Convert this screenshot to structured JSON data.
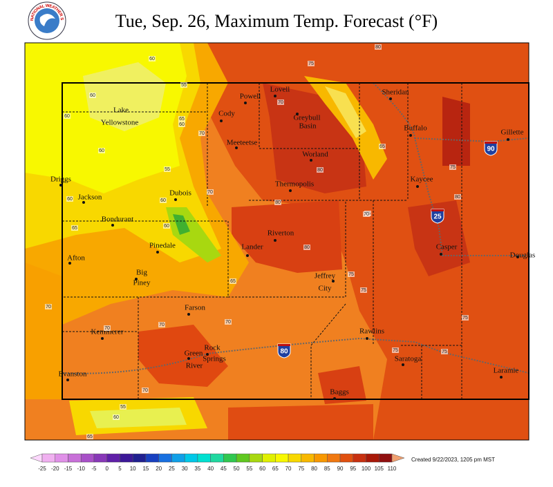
{
  "header": {
    "title": "Tue, Sep. 26, Maximum Temp. Forecast (°F)",
    "logo_text": "NATIONAL WEATHER SERVICE"
  },
  "cities": [
    "Lake",
    "Yellowstone",
    "Cody",
    "Powell",
    "Lovell",
    "Sheridan",
    "Greybull",
    "Basin",
    "Buffalo",
    "Gillette",
    "Meeteetse",
    "Worland",
    "Driggs",
    "Thermopolis",
    "Kaycee",
    "Dubois",
    "Jackson",
    "Bondurant",
    "Riverton",
    "Pinedale",
    "Lander",
    "Casper",
    "Douglas",
    "Afton",
    "Big",
    "Piney",
    "Jeffrey",
    "City",
    "Farson",
    "Rawlins",
    "Kemmerer",
    "Rock",
    "Springs",
    "Green",
    "River",
    "Saratoga",
    "Laramie",
    "Evanston",
    "Baggs"
  ],
  "contour_labels": [
    60,
    60,
    65,
    60,
    55,
    60,
    70,
    55,
    60,
    60,
    65,
    70,
    75,
    70,
    80,
    80,
    75,
    80,
    65,
    70,
    70,
    60,
    65,
    70,
    70,
    75,
    75,
    75,
    80,
    75,
    65,
    70,
    55,
    80,
    60,
    60,
    75,
    75,
    70
  ],
  "shields": [
    "90",
    "25",
    "80"
  ],
  "legend": {
    "labels": [
      -25,
      -20,
      -15,
      -10,
      -5,
      0,
      5,
      10,
      15,
      20,
      25,
      30,
      35,
      40,
      45,
      50,
      55,
      60,
      65,
      70,
      75,
      80,
      85,
      90,
      95,
      100,
      105,
      110
    ],
    "colors": [
      "#fcd8fc",
      "#f0b0f0",
      "#e090e8",
      "#c870d8",
      "#a850c8",
      "#8838b8",
      "#6020a8",
      "#3c1898",
      "#202090",
      "#1840c0",
      "#1870e0",
      "#10a0e8",
      "#00c8e8",
      "#00e0d0",
      "#20d8a0",
      "#30c850",
      "#60c820",
      "#a8d810",
      "#e0f000",
      "#f8f800",
      "#f8d800",
      "#f8b800",
      "#f89800",
      "#f07810",
      "#e05010",
      "#c83010",
      "#a81808",
      "#901010",
      "#b03858",
      "#f0a070"
    ]
  },
  "credit": "Created 9/22/2023, 1205 pm MST"
}
